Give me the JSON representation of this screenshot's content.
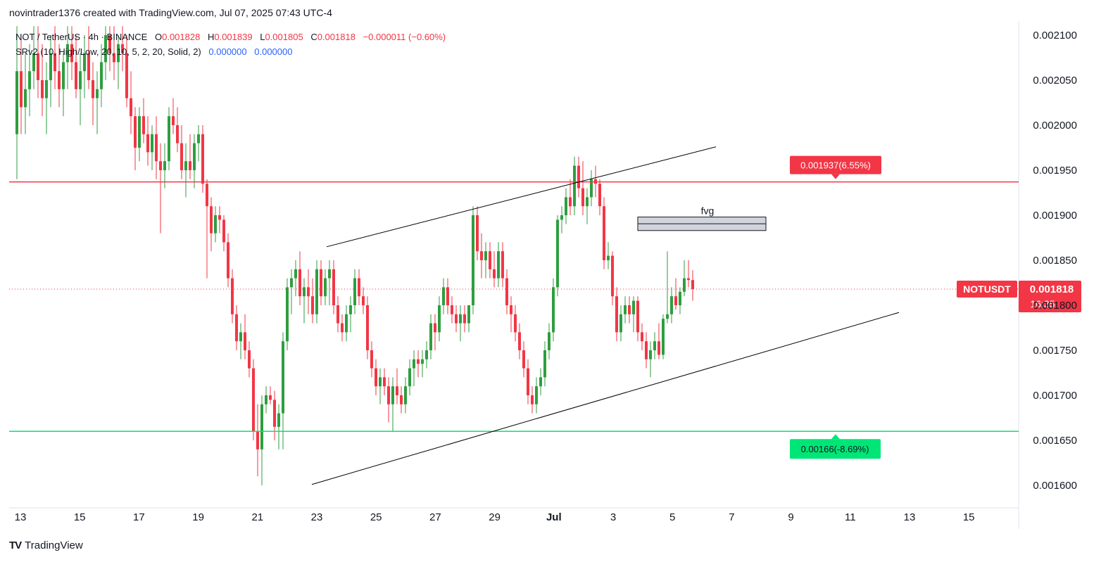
{
  "header": {
    "credit": "novintrader1376 created with TradingView.com, Jul 07, 2025 07:43 UTC-4"
  },
  "legend": {
    "symbol": "NOT / TetherUS · 4h · BINANCE",
    "o_label": "O",
    "o_value": "0.001828",
    "h_label": "H",
    "h_value": "0.001839",
    "l_label": "L",
    "l_value": "0.001805",
    "c_label": "C",
    "c_value": "0.001818",
    "change": "−0.000011 (−0.60%)",
    "indicator": "SRv2 (10, High/Low, 20, 10, 5, 2, 20, Solid, 2)",
    "ind_value_1": "0.000000",
    "ind_value_2": "0.000000"
  },
  "colors": {
    "up": "#22ab94",
    "up_body": "#2e9e3f",
    "down": "#f23645",
    "resistance": "#f23645",
    "support": "#00e676",
    "trendline": "#000000",
    "fvg_fill": "#d1d4dc"
  },
  "price_axis": {
    "ticks": [
      "0.002100",
      "0.002050",
      "0.002000",
      "0.001950",
      "0.001900",
      "0.001850",
      "0.001800",
      "0.001750",
      "0.001700",
      "0.001650",
      "0.001600"
    ]
  },
  "time_axis": {
    "ticks": [
      "13",
      "15",
      "17",
      "19",
      "21",
      "23",
      "25",
      "27",
      "29",
      "Jul",
      "3",
      "5",
      "7",
      "9",
      "11",
      "13",
      "15"
    ]
  },
  "annotations": {
    "resistance_label": "0.001937(6.55%)",
    "resistance_price": 0.001937,
    "support_label": "0.00166(-8.69%)",
    "support_price": 0.00166,
    "fvg_label": "fvg",
    "fvg_top": 0.001898,
    "fvg_bottom": 0.001883,
    "current_price_line": 0.001818
  },
  "price_tag": {
    "symbol": "NOTUSDT",
    "price": "0.001818",
    "countdown": "16:35"
  },
  "footer": {
    "logo_mark": "TV",
    "brand": "TradingView"
  },
  "chart_data": {
    "type": "candlestick",
    "timeframe": "4h",
    "symbol": "NOTUSDT",
    "ylim": [
      0.00159,
      0.002115
    ],
    "candles": [
      [
        0.00199,
        0.00211,
        0.00194,
        0.00206
      ],
      [
        0.00206,
        0.0021,
        0.00199,
        0.00202
      ],
      [
        0.00202,
        0.00208,
        0.00199,
        0.00204
      ],
      [
        0.00204,
        0.00209,
        0.00201,
        0.00206
      ],
      [
        0.00206,
        0.00211,
        0.00204,
        0.00208
      ],
      [
        0.00208,
        0.00211,
        0.00203,
        0.00205
      ],
      [
        0.00205,
        0.00209,
        0.00201,
        0.00203
      ],
      [
        0.00203,
        0.00207,
        0.00199,
        0.00205
      ],
      [
        0.00205,
        0.0021,
        0.00202,
        0.00208
      ],
      [
        0.00208,
        0.00211,
        0.00204,
        0.00206
      ],
      [
        0.00206,
        0.00209,
        0.00202,
        0.00204
      ],
      [
        0.00204,
        0.00208,
        0.00201,
        0.00207
      ],
      [
        0.00207,
        0.00211,
        0.00204,
        0.00209
      ],
      [
        0.00209,
        0.00211,
        0.00205,
        0.00207
      ],
      [
        0.00207,
        0.0021,
        0.00203,
        0.00204
      ],
      [
        0.00204,
        0.00208,
        0.002,
        0.00206
      ],
      [
        0.00206,
        0.0021,
        0.00203,
        0.00208
      ],
      [
        0.00208,
        0.00211,
        0.00204,
        0.00205
      ],
      [
        0.00205,
        0.00207,
        0.002,
        0.00203
      ],
      [
        0.00203,
        0.00206,
        0.00199,
        0.00204
      ],
      [
        0.00204,
        0.00209,
        0.00202,
        0.00207
      ],
      [
        0.00207,
        0.00211,
        0.00205,
        0.0021
      ],
      [
        0.0021,
        0.00211,
        0.00206,
        0.00208
      ],
      [
        0.00208,
        0.00211,
        0.00205,
        0.00207
      ],
      [
        0.00207,
        0.0021,
        0.00204,
        0.00209
      ],
      [
        0.00209,
        0.00211,
        0.00206,
        0.00208
      ],
      [
        0.00208,
        0.0021,
        0.00202,
        0.00203
      ],
      [
        0.00203,
        0.00206,
        0.00199,
        0.00201
      ],
      [
        0.00201,
        0.00202,
        0.00195,
        0.001975
      ],
      [
        0.001975,
        0.00202,
        0.00196,
        0.00201
      ],
      [
        0.00201,
        0.00203,
        0.00198,
        0.00199
      ],
      [
        0.00199,
        0.00201,
        0.001955,
        0.00197
      ],
      [
        0.00197,
        0.002,
        0.00195,
        0.00199
      ],
      [
        0.00199,
        0.00201,
        0.00194,
        0.00196
      ],
      [
        0.00196,
        0.00198,
        0.00188,
        0.00195
      ],
      [
        0.00195,
        0.00198,
        0.00193,
        0.00196
      ],
      [
        0.00196,
        0.00202,
        0.00195,
        0.00201
      ],
      [
        0.00201,
        0.00203,
        0.00199,
        0.002
      ],
      [
        0.002,
        0.00202,
        0.00197,
        0.00198
      ],
      [
        0.00198,
        0.002,
        0.00194,
        0.00195
      ],
      [
        0.00195,
        0.00198,
        0.00192,
        0.00196
      ],
      [
        0.00196,
        0.00199,
        0.00194,
        0.00195
      ],
      [
        0.00195,
        0.00199,
        0.00193,
        0.00198
      ],
      [
        0.00198,
        0.002,
        0.00196,
        0.00199
      ],
      [
        0.00199,
        0.002,
        0.001925,
        0.001935
      ],
      [
        0.001935,
        0.00194,
        0.00183,
        0.00191
      ],
      [
        0.00191,
        0.00192,
        0.00186,
        0.00188
      ],
      [
        0.00188,
        0.00191,
        0.00187,
        0.0019
      ],
      [
        0.0019,
        0.00191,
        0.00188,
        0.001895
      ],
      [
        0.001895,
        0.0019,
        0.00186,
        0.00187
      ],
      [
        0.00187,
        0.00188,
        0.00182,
        0.00183
      ],
      [
        0.00183,
        0.00184,
        0.00178,
        0.00179
      ],
      [
        0.00179,
        0.0018,
        0.00175,
        0.00176
      ],
      [
        0.00176,
        0.00178,
        0.00174,
        0.00177
      ],
      [
        0.00177,
        0.00179,
        0.00174,
        0.00175
      ],
      [
        0.00175,
        0.00176,
        0.00172,
        0.00173
      ],
      [
        0.00173,
        0.00174,
        0.00165,
        0.00166
      ],
      [
        0.00166,
        0.00169,
        0.00161,
        0.00164
      ],
      [
        0.00164,
        0.0017,
        0.0016,
        0.00169
      ],
      [
        0.00169,
        0.00171,
        0.00168,
        0.0017
      ],
      [
        0.0017,
        0.00171,
        0.00169,
        0.001695
      ],
      [
        0.001695,
        0.001705,
        0.00165,
        0.001665
      ],
      [
        0.001665,
        0.00169,
        0.00164,
        0.00168
      ],
      [
        0.00168,
        0.00177,
        0.00164,
        0.00176
      ],
      [
        0.00176,
        0.00183,
        0.00175,
        0.00182
      ],
      [
        0.00182,
        0.00184,
        0.00179,
        0.00183
      ],
      [
        0.00183,
        0.00185,
        0.00181,
        0.00184
      ],
      [
        0.00184,
        0.00186,
        0.0018,
        0.00181
      ],
      [
        0.00181,
        0.00183,
        0.00178,
        0.00182
      ],
      [
        0.00182,
        0.00184,
        0.00179,
        0.00181
      ],
      [
        0.00181,
        0.00183,
        0.00178,
        0.00179
      ],
      [
        0.00179,
        0.00185,
        0.00178,
        0.00184
      ],
      [
        0.00184,
        0.00185,
        0.0018,
        0.00181
      ],
      [
        0.00181,
        0.00184,
        0.0018,
        0.00183
      ],
      [
        0.00183,
        0.00185,
        0.0018,
        0.00184
      ],
      [
        0.00184,
        0.00185,
        0.00179,
        0.0018
      ],
      [
        0.0018,
        0.00181,
        0.00177,
        0.00178
      ],
      [
        0.00178,
        0.00179,
        0.00176,
        0.00177
      ],
      [
        0.00177,
        0.0018,
        0.00176,
        0.00179
      ],
      [
        0.00179,
        0.00181,
        0.00177,
        0.0018
      ],
      [
        0.0018,
        0.00184,
        0.00179,
        0.00183
      ],
      [
        0.00183,
        0.00184,
        0.0018,
        0.00181
      ],
      [
        0.00181,
        0.00182,
        0.00179,
        0.0018
      ],
      [
        0.0018,
        0.00181,
        0.00174,
        0.00175
      ],
      [
        0.00175,
        0.00176,
        0.00172,
        0.00173
      ],
      [
        0.00173,
        0.00174,
        0.0017,
        0.00171
      ],
      [
        0.00171,
        0.00173,
        0.00169,
        0.00172
      ],
      [
        0.00172,
        0.00173,
        0.0017,
        0.00171
      ],
      [
        0.00171,
        0.00172,
        0.00167,
        0.00169
      ],
      [
        0.00169,
        0.00172,
        0.00166,
        0.00171
      ],
      [
        0.00171,
        0.00173,
        0.00169,
        0.0017
      ],
      [
        0.0017,
        0.00171,
        0.00168,
        0.00169
      ],
      [
        0.00169,
        0.00172,
        0.00168,
        0.00171
      ],
      [
        0.00171,
        0.00174,
        0.0017,
        0.00173
      ],
      [
        0.00173,
        0.00175,
        0.00171,
        0.00174
      ],
      [
        0.00174,
        0.00175,
        0.00172,
        0.001735
      ],
      [
        0.001735,
        0.00175,
        0.00172,
        0.00174
      ],
      [
        0.00174,
        0.00176,
        0.00173,
        0.00175
      ],
      [
        0.00175,
        0.00179,
        0.00174,
        0.00178
      ],
      [
        0.00178,
        0.00179,
        0.00175,
        0.00177
      ],
      [
        0.00177,
        0.00181,
        0.00176,
        0.0018
      ],
      [
        0.0018,
        0.00183,
        0.00179,
        0.00182
      ],
      [
        0.00182,
        0.00183,
        0.00179,
        0.0018
      ],
      [
        0.0018,
        0.00181,
        0.00178,
        0.00179
      ],
      [
        0.00179,
        0.0018,
        0.00177,
        0.00178
      ],
      [
        0.00178,
        0.0018,
        0.00176,
        0.00179
      ],
      [
        0.00179,
        0.0018,
        0.00177,
        0.00178
      ],
      [
        0.00178,
        0.0018,
        0.00177,
        0.0018
      ],
      [
        0.0018,
        0.00191,
        0.00179,
        0.0019
      ],
      [
        0.0019,
        0.00191,
        0.00185,
        0.00186
      ],
      [
        0.00186,
        0.00188,
        0.00183,
        0.00185
      ],
      [
        0.00185,
        0.00187,
        0.00183,
        0.00186
      ],
      [
        0.00186,
        0.00187,
        0.00183,
        0.00184
      ],
      [
        0.00184,
        0.00186,
        0.00182,
        0.00183
      ],
      [
        0.00183,
        0.00187,
        0.00182,
        0.00186
      ],
      [
        0.00186,
        0.00187,
        0.00182,
        0.00183
      ],
      [
        0.00183,
        0.00184,
        0.00179,
        0.0018
      ],
      [
        0.0018,
        0.00181,
        0.00177,
        0.00179
      ],
      [
        0.00179,
        0.0018,
        0.00176,
        0.00177
      ],
      [
        0.00177,
        0.00178,
        0.00174,
        0.00175
      ],
      [
        0.00175,
        0.00176,
        0.00172,
        0.00173
      ],
      [
        0.00173,
        0.00174,
        0.00169,
        0.0017
      ],
      [
        0.0017,
        0.00171,
        0.00168,
        0.00169
      ],
      [
        0.00169,
        0.00172,
        0.00168,
        0.00171
      ],
      [
        0.00171,
        0.00173,
        0.0017,
        0.00172
      ],
      [
        0.00172,
        0.00176,
        0.00171,
        0.00175
      ],
      [
        0.00175,
        0.00178,
        0.00174,
        0.00177
      ],
      [
        0.00177,
        0.00183,
        0.00176,
        0.00182
      ],
      [
        0.00182,
        0.0019,
        0.00181,
        0.001895
      ],
      [
        0.001895,
        0.00191,
        0.00188,
        0.0019
      ],
      [
        0.0019,
        0.00193,
        0.00189,
        0.00192
      ],
      [
        0.00192,
        0.00194,
        0.0019,
        0.00191
      ],
      [
        0.00191,
        0.001965,
        0.0019,
        0.001955
      ],
      [
        0.001955,
        0.001965,
        0.00192,
        0.00193
      ],
      [
        0.00193,
        0.00196,
        0.0019,
        0.00191
      ],
      [
        0.00191,
        0.00193,
        0.00189,
        0.00192
      ],
      [
        0.00192,
        0.00195,
        0.00191,
        0.00194
      ],
      [
        0.00194,
        0.001955,
        0.00192,
        0.001935
      ],
      [
        0.001935,
        0.00194,
        0.0019,
        0.00191
      ],
      [
        0.00191,
        0.00192,
        0.00184,
        0.00185
      ],
      [
        0.00185,
        0.00187,
        0.00184,
        0.001855
      ],
      [
        0.001855,
        0.00186,
        0.0018,
        0.00181
      ],
      [
        0.00181,
        0.00182,
        0.00176,
        0.00177
      ],
      [
        0.00177,
        0.0018,
        0.00176,
        0.00179
      ],
      [
        0.00179,
        0.00181,
        0.00178,
        0.0018
      ],
      [
        0.0018,
        0.00181,
        0.00178,
        0.00179
      ],
      [
        0.00179,
        0.00181,
        0.00177,
        0.001805
      ],
      [
        0.001805,
        0.00181,
        0.00176,
        0.00177
      ],
      [
        0.00177,
        0.00178,
        0.00175,
        0.00176
      ],
      [
        0.00176,
        0.00177,
        0.00173,
        0.00174
      ],
      [
        0.00174,
        0.00176,
        0.00172,
        0.00175
      ],
      [
        0.00175,
        0.00177,
        0.00174,
        0.00176
      ],
      [
        0.00176,
        0.00178,
        0.00174,
        0.001745
      ],
      [
        0.001745,
        0.00179,
        0.00174,
        0.001785
      ],
      [
        0.001785,
        0.00186,
        0.00178,
        0.00179
      ],
      [
        0.00179,
        0.00182,
        0.00178,
        0.00181
      ],
      [
        0.00181,
        0.00183,
        0.001795,
        0.0018
      ],
      [
        0.0018,
        0.00182,
        0.00179,
        0.001815
      ],
      [
        0.001815,
        0.00185,
        0.00181,
        0.00183
      ],
      [
        0.00183,
        0.00185,
        0.00182,
        0.001828
      ],
      [
        0.001828,
        0.001839,
        0.001805,
        0.001818
      ]
    ]
  }
}
